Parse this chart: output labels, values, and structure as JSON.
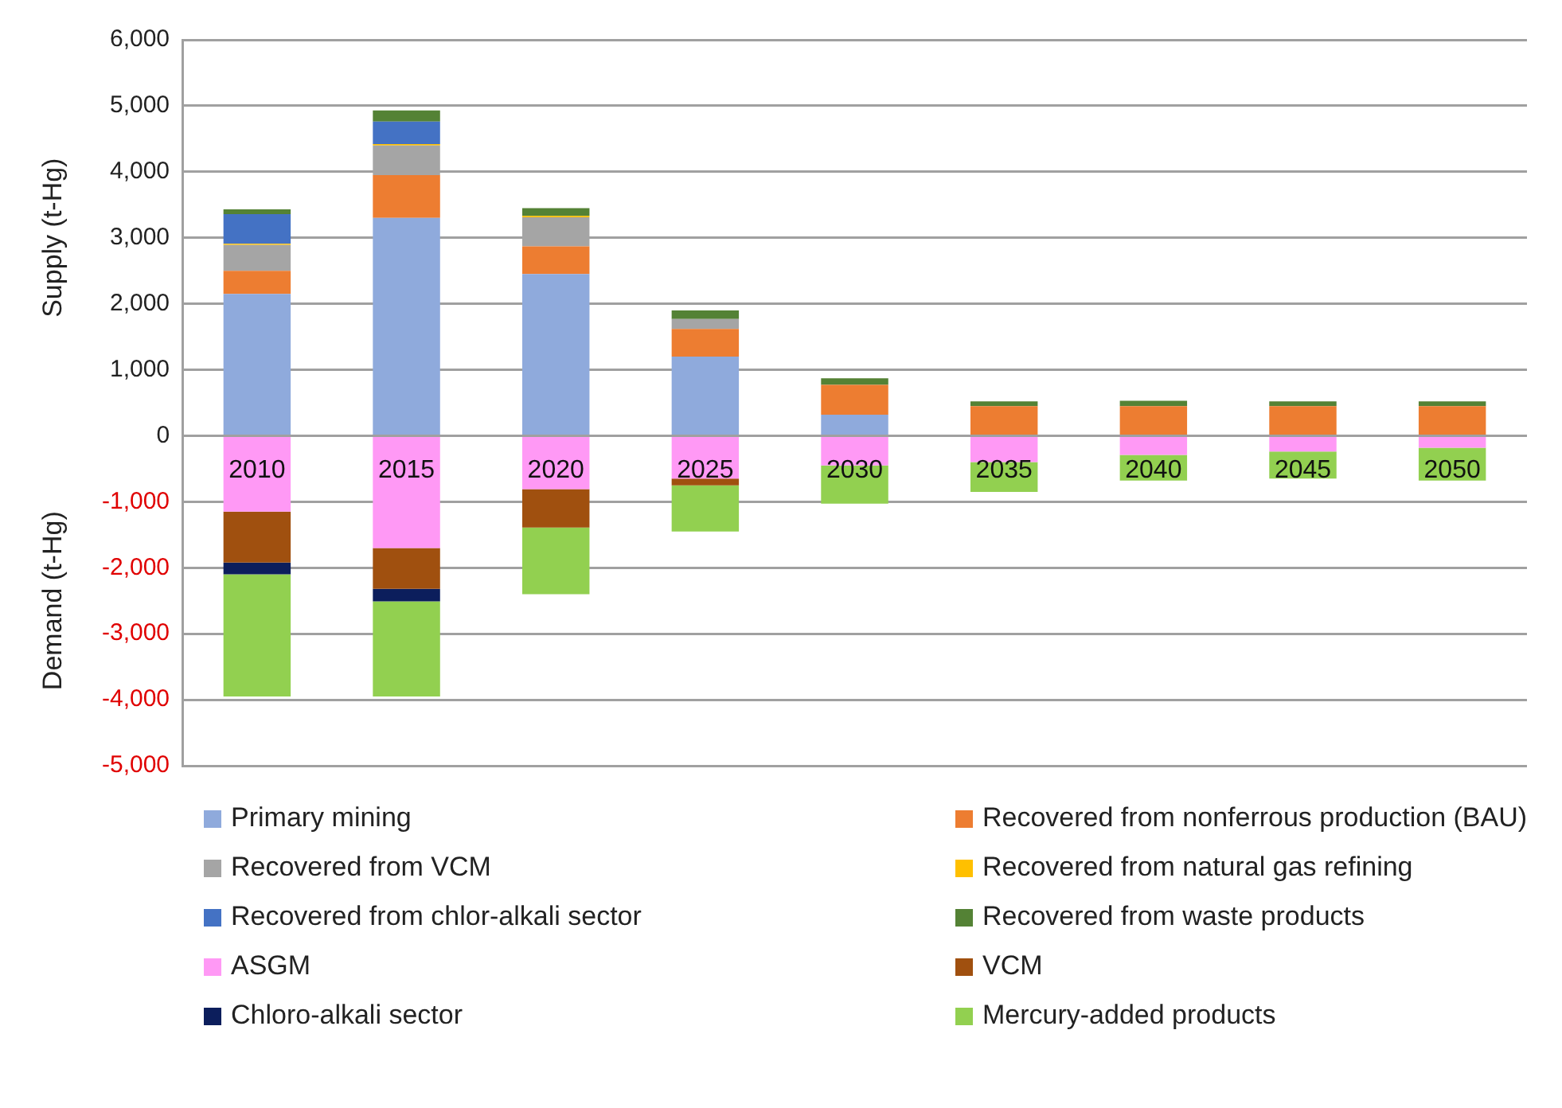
{
  "chart_data": {
    "type": "bar",
    "stacked": true,
    "ylabel": "Supply (t-Hg)",
    "annotations": [
      "Demand (t-Hg)"
    ],
    "categories": [
      "2010",
      "2015",
      "2020",
      "2025",
      "2030",
      "2035",
      "2040",
      "2045",
      "2050"
    ],
    "ylim": [
      -5000,
      6000
    ],
    "yticks": [
      {
        "value": -5000,
        "label": "-5,000"
      },
      {
        "value": -4000,
        "label": "-4,000"
      },
      {
        "value": -3000,
        "label": "-3,000"
      },
      {
        "value": -2000,
        "label": "-2,000"
      },
      {
        "value": -1000,
        "label": "-1,000"
      },
      0,
      {
        "value": 1000,
        "label": "1,000"
      },
      {
        "value": 2000,
        "label": "2,000"
      },
      {
        "value": 3000,
        "label": "3,000"
      },
      {
        "value": 4000,
        "label": "4,000"
      },
      {
        "value": 5000,
        "label": "5,000"
      },
      {
        "value": 6000,
        "label": "6,000"
      }
    ],
    "grid": "y",
    "legend": "bottom",
    "series": [
      {
        "name": "Primary mining",
        "color": "#8faadc",
        "values": [
          2150,
          3300,
          2450,
          1200,
          320,
          0,
          0,
          0,
          0
        ]
      },
      {
        "name": "Recovered from nonferrous production (BAU)",
        "color": "#ed7d31",
        "values": [
          350,
          650,
          420,
          420,
          450,
          450,
          450,
          450,
          450
        ]
      },
      {
        "name": "Recovered from VCM",
        "color": "#a5a5a5",
        "values": [
          390,
          450,
          440,
          150,
          0,
          0,
          0,
          0,
          0
        ]
      },
      {
        "name": "Recovered from natural gas refining",
        "color": "#ffc000",
        "values": [
          20,
          20,
          20,
          0,
          0,
          0,
          0,
          0,
          0
        ]
      },
      {
        "name": "Recovered from chlor-alkali sector",
        "color": "#4472c4",
        "values": [
          450,
          340,
          0,
          0,
          0,
          0,
          0,
          0,
          0
        ]
      },
      {
        "name": "Recovered from waste products",
        "color": "#548235",
        "values": [
          70,
          170,
          120,
          130,
          100,
          70,
          80,
          70,
          70
        ]
      },
      {
        "name": "ASGM",
        "color": "#ff99f5",
        "values": [
          -1150,
          -1700,
          -810,
          -650,
          -450,
          -400,
          -290,
          -240,
          -180
        ]
      },
      {
        "name": "VCM",
        "color": "#a0500f",
        "values": [
          -770,
          -620,
          -580,
          -100,
          0,
          0,
          0,
          0,
          0
        ]
      },
      {
        "name": "Chloro-alkali sector",
        "color": "#0c1e5c",
        "values": [
          -180,
          -190,
          0,
          0,
          0,
          0,
          0,
          0,
          0
        ]
      },
      {
        "name": "Mercury-added products",
        "color": "#92d050",
        "values": [
          -1850,
          -1440,
          -1010,
          -700,
          -580,
          -450,
          -390,
          -410,
          -500
        ]
      }
    ]
  }
}
